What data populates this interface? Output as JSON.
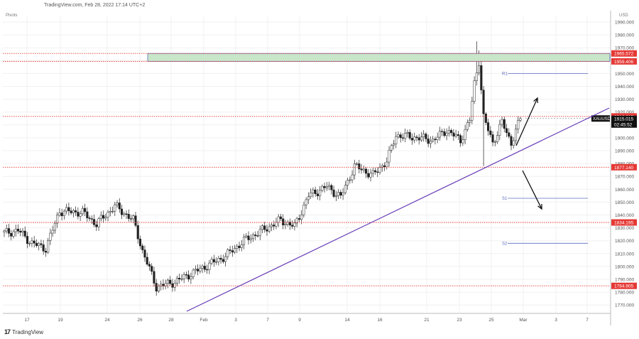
{
  "header": {
    "text": "TradingView.com, Feb 28, 2022 17:14 UTC+2"
  },
  "indicator_label": "Pivots",
  "currency_label": "USD",
  "logo_text": "TradingView",
  "chart_data": {
    "type": "candlestick",
    "symbol": "XAUUSD",
    "ylim": [
      1760,
      1996
    ],
    "y_ticks": [
      1770,
      1780,
      1790,
      1800,
      1810,
      1820,
      1830,
      1840,
      1850,
      1860,
      1870,
      1880,
      1890,
      1900,
      1910,
      1920,
      1930,
      1940,
      1950,
      1960,
      1970,
      1980,
      1990
    ],
    "x_ticks": [
      "17",
      "19",
      "24",
      "26",
      "28",
      "Feb",
      "3",
      "7",
      "9",
      "14",
      "16",
      "21",
      "23",
      "25",
      "Mar",
      "3",
      "7"
    ],
    "levels": [
      {
        "price": 1965.572,
        "label": "1965.572",
        "color": "#e53935"
      },
      {
        "price": 1959.406,
        "label": "1959.406",
        "color": "#e53935"
      },
      {
        "price": 1916.615,
        "label": "1916.615",
        "color": "#e53935"
      },
      {
        "price": 1877.14,
        "label": "1877.140",
        "color": "#e53935"
      },
      {
        "price": 1834.195,
        "label": "1834.195",
        "color": "#e53935"
      },
      {
        "price": 1784.905,
        "label": "1784.905",
        "color": "#e53935"
      }
    ],
    "current": {
      "symbol": "XAUUSD",
      "price": 1915.015,
      "price_label": "1915.015",
      "countdown": "02:45:52"
    },
    "pivots": [
      {
        "label": "R1",
        "price": 1950
      },
      {
        "label": "S1",
        "price": 1853
      },
      {
        "label": "S2",
        "price": 1818
      }
    ],
    "resistance_zone": {
      "from": 1959.406,
      "to": 1965.572,
      "color": "#c8e6c9"
    },
    "trendline": {
      "from": {
        "date": "Jan 24",
        "price": 1768
      },
      "to": {
        "date": "Mar 9",
        "price": 1922
      },
      "color": "#673ab7"
    },
    "scenario_arrows": [
      {
        "direction": "up",
        "from_price": 1897,
        "to_price": 1930
      },
      {
        "direction": "down",
        "from_price": 1875,
        "to_price": 1843
      }
    ],
    "colors": {
      "up": "#ffffff",
      "down": "#222222",
      "grid": "#f0f0f0",
      "level": "#e53935"
    }
  }
}
